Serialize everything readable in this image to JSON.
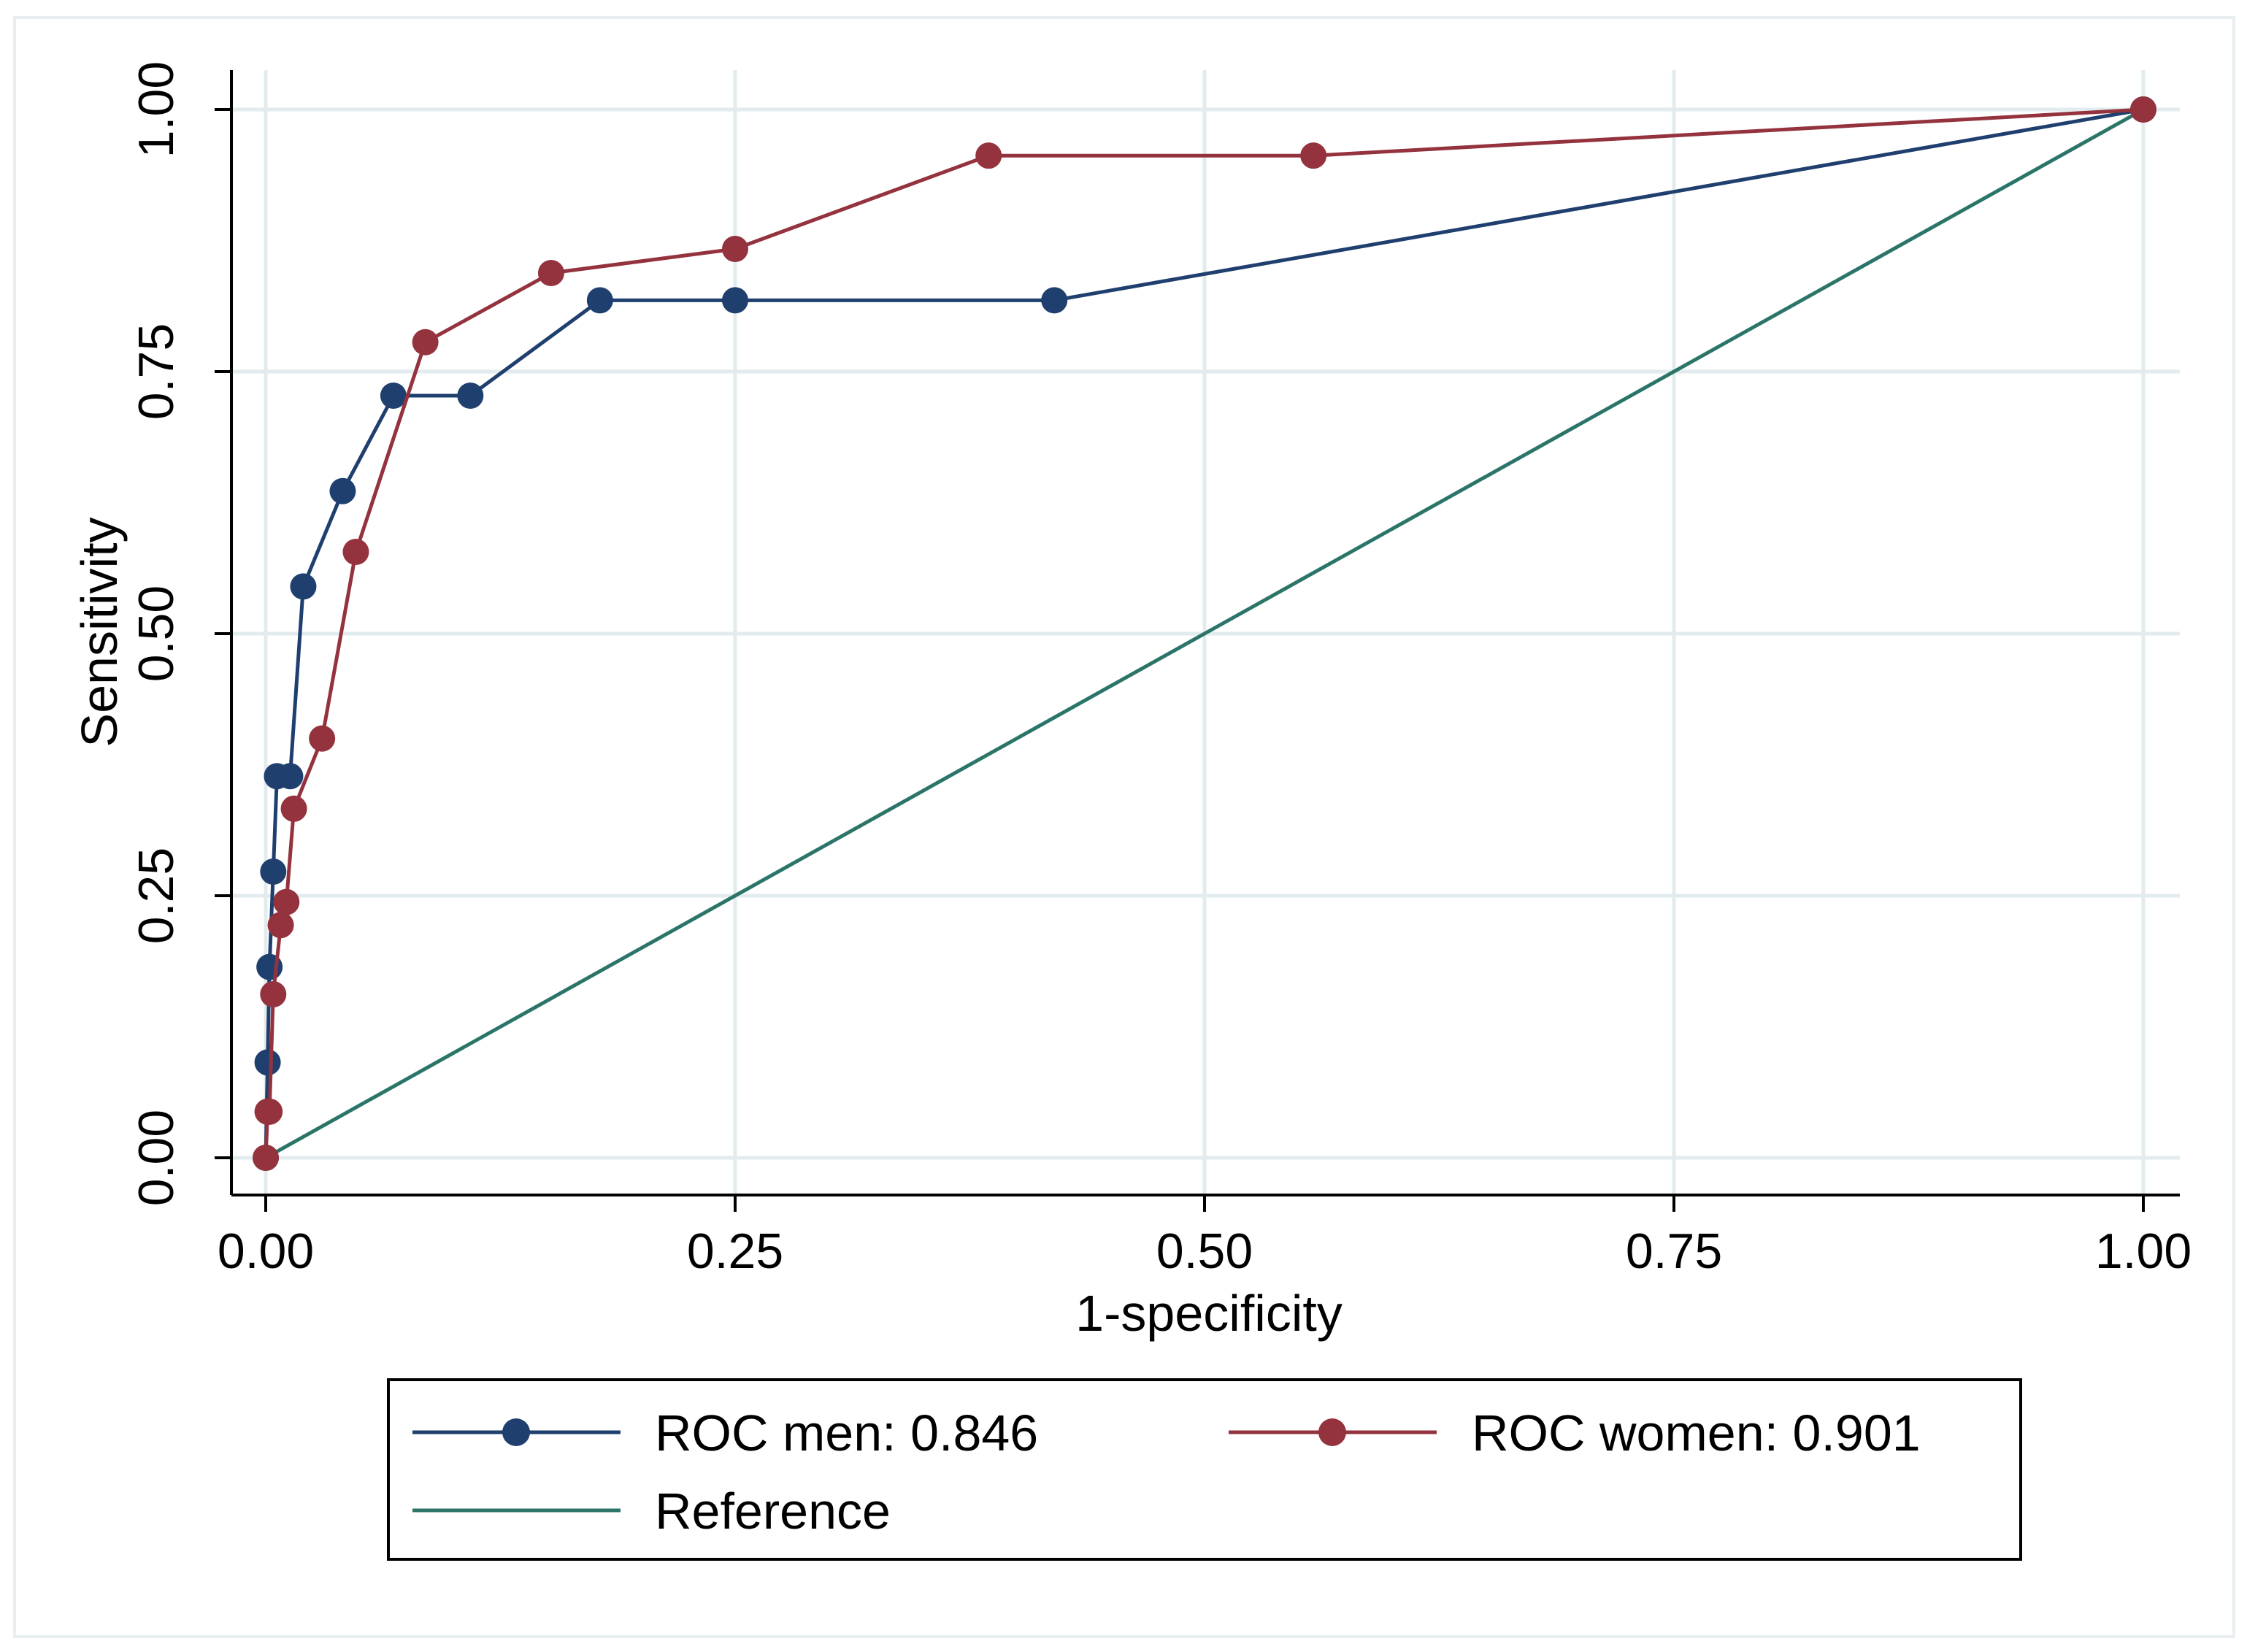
{
  "chart_data": {
    "type": "line",
    "title": "",
    "xlabel": "1-specificity",
    "ylabel": "Sensitivity",
    "xlim": [
      0,
      1
    ],
    "ylim": [
      0,
      1
    ],
    "grid": true,
    "x_ticks": [
      "0.00",
      "0.25",
      "0.50",
      "0.75",
      "1.00"
    ],
    "y_ticks": [
      "0.00",
      "0.25",
      "0.50",
      "0.75",
      "1.00"
    ],
    "legend_position": "bottom",
    "series": [
      {
        "name": "ROC men: 0.846",
        "color": "#1f3f6e",
        "markers": true,
        "x": [
          0.0,
          0.001,
          0.002,
          0.004,
          0.006,
          0.013,
          0.02,
          0.041,
          0.068,
          0.109,
          0.178,
          0.25,
          0.42,
          1.0
        ],
        "y": [
          0.0,
          0.091,
          0.182,
          0.273,
          0.364,
          0.364,
          0.545,
          0.636,
          0.727,
          0.727,
          0.818,
          0.818,
          0.818,
          1.0
        ]
      },
      {
        "name": "ROC women: 0.901",
        "color": "#94333e",
        "markers": true,
        "x": [
          0.0,
          0.001,
          0.002,
          0.004,
          0.008,
          0.011,
          0.015,
          0.03,
          0.048,
          0.085,
          0.152,
          0.25,
          0.385,
          0.558,
          1.0
        ],
        "y": [
          0.0,
          0.044,
          0.044,
          0.156,
          0.222,
          0.244,
          0.333,
          0.4,
          0.578,
          0.778,
          0.844,
          0.867,
          0.956,
          0.956,
          1.0
        ]
      },
      {
        "name": "Reference",
        "color": "#2b7568",
        "markers": false,
        "x": [
          0,
          1
        ],
        "y": [
          0,
          1
        ]
      }
    ]
  }
}
